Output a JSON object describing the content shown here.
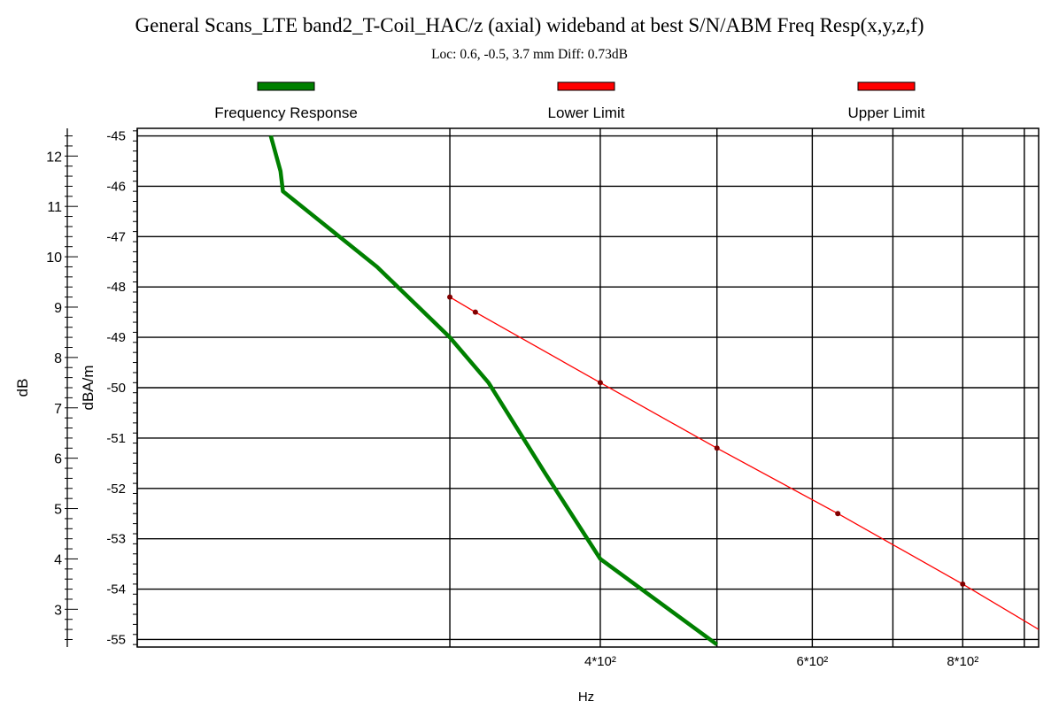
{
  "chart_data": {
    "type": "line",
    "title": "General Scans_LTE band2_T-Coil_HAC/z (axial) wideband at best S/N/ABM Freq Resp(x,y,z,f)",
    "subtitle": "Loc: 0.6, -0.5, 3.7 mm Diff: 0.73dB",
    "xlabel": "Hz",
    "x_ticks": [
      "4*10²",
      "6*10²",
      "8*10²"
    ],
    "x_tick_values": [
      400,
      600,
      800
    ],
    "x_grid_values": [
      300,
      400,
      500,
      600,
      700,
      800,
      900
    ],
    "xlim": [
      165,
      925
    ],
    "xscale": "log",
    "y_left_label": "dB",
    "y_left_ticks": [
      "3",
      "4",
      "5",
      "6",
      "7",
      "8",
      "9",
      "10",
      "11",
      "12"
    ],
    "y_left_range": [
      2.25,
      12.55
    ],
    "y_right_label": "dBA/m",
    "y_right_ticks": [
      "-55",
      "-54",
      "-53",
      "-52",
      "-51",
      "-50",
      "-49",
      "-48",
      "-47",
      "-46",
      "-45"
    ],
    "ylim": [
      -55.15,
      -44.85
    ],
    "grid": true,
    "legend_position": "top",
    "series": [
      {
        "name": "Frequency Response",
        "color": "#008000",
        "x": [
          213,
          217,
          218,
          261,
          300,
          323,
          360,
          400,
          500
        ],
        "y": [
          -45.0,
          -45.7,
          -46.1,
          -47.6,
          -49.0,
          -49.9,
          -51.7,
          -53.4,
          -55.1
        ]
      },
      {
        "name": "Lower Limit",
        "color": "#ff0000",
        "x": [
          300,
          315,
          400,
          500,
          630,
          800,
          925
        ],
        "y": [
          -48.2,
          -48.5,
          -49.9,
          -51.2,
          -52.5,
          -53.9,
          -54.8
        ],
        "markers": [
          true,
          true,
          true,
          true,
          true,
          true,
          false
        ]
      }
    ],
    "legend": [
      {
        "name": "Frequency Response",
        "color": "#008000"
      },
      {
        "name": "Lower Limit",
        "color": "#ff0000"
      },
      {
        "name": "Upper Limit",
        "color": "#ff0000"
      }
    ]
  }
}
